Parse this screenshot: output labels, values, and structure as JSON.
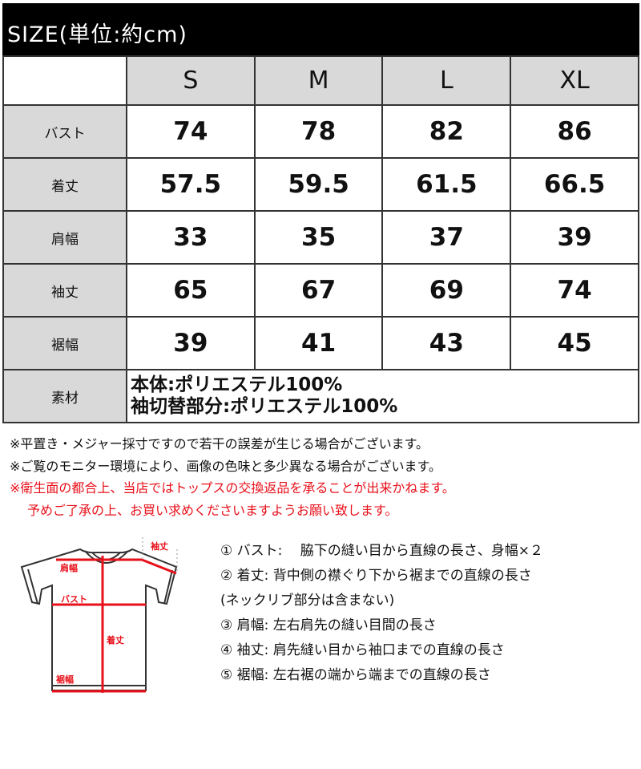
{
  "title": "SIZE(単位:約cm)",
  "sizes": [
    "S",
    "M",
    "L",
    "XL"
  ],
  "rows": [
    {
      "label": "バスト",
      "values": [
        "74",
        "78",
        "82",
        "86"
      ]
    },
    {
      "label": "着丈",
      "values": [
        "57.5",
        "59.5",
        "61.5",
        "66.5"
      ]
    },
    {
      "label": "肩幅",
      "values": [
        "33",
        "35",
        "37",
        "39"
      ]
    },
    {
      "label": "袖丈",
      "values": [
        "65",
        "67",
        "69",
        "74"
      ]
    },
    {
      "label": "裾幅",
      "values": [
        "39",
        "41",
        "43",
        "45"
      ]
    }
  ],
  "material": {
    "label": "素材",
    "line1": "本体:ポリエステル100%",
    "line2": "袖切替部分:ポリエステル100%"
  },
  "notes": [
    "※平置き・メジャー採寸ですので若干の誤差が生じる場合がございます。",
    "※ご覧のモニター環境により、画像の色味と多少異なる場合がございます。",
    "※衛生面の都合上、当店ではトップスの交換返品を承ることが出来かねます。",
    "予めご了承の上、お買い求めくださいますようお願い致します。"
  ],
  "diagram": {
    "shoulder": "肩幅",
    "bust": "バスト",
    "sleeve": "袖丈",
    "length": "着丈",
    "hem": "裾幅",
    "line_color": "#e8101a"
  },
  "legend": [
    "① バスト:　 脇下の縫い目から直線の長さ、身幅×２",
    "② 着丈:  背中側の襟ぐり下から裾までの直線の長さ",
    "(ネックリブ部分は含まない)",
    "③ 肩幅:  左右肩先の縫い目間の長さ",
    "④ 袖丈:  肩先縫い目から袖口までの直線の長さ",
    "⑤ 裾幅:  左右裾の端から端までの直線の長さ"
  ]
}
